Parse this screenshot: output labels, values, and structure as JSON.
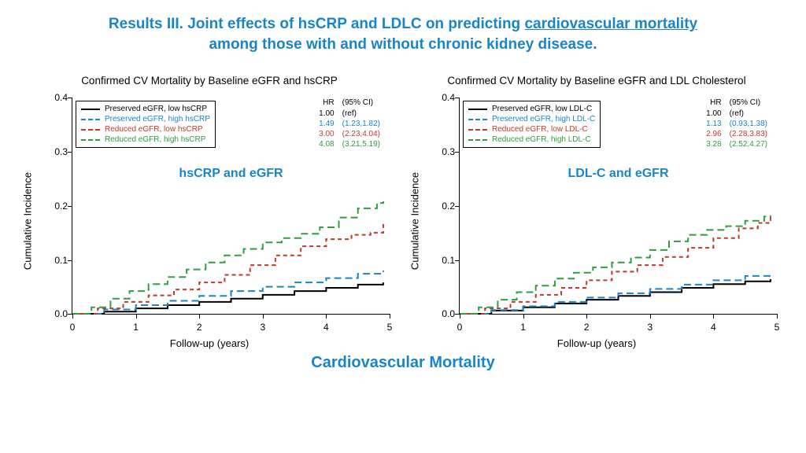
{
  "title": {
    "prefix": "Results III. Joint effects of hsCRP and LDLC on predicting ",
    "underlined": "cardiovascular mortality",
    "line2": "among those with and without chronic kidney disease."
  },
  "footer": "Cardiovascular Mortality",
  "axes": {
    "xlabel": "Follow-up (years)",
    "ylabel": "Cumulative Incidence",
    "xlim": [
      0,
      5
    ],
    "ylim": [
      0,
      0.4
    ],
    "xticks": [
      0,
      1,
      2,
      3,
      4,
      5
    ],
    "yticks": [
      0.0,
      0.1,
      0.2,
      0.3,
      0.4
    ],
    "tick_fontsize": 12,
    "label_fontsize": 13
  },
  "style": {
    "line_width": 2,
    "dash_short": "5,4",
    "dash_long": "9,5",
    "colors": {
      "black": "#000000",
      "blue": "#1985c8",
      "red": "#c0392b",
      "green": "#2e9e3f",
      "title": "#1985c8"
    },
    "background": "#ffffff"
  },
  "left_chart": {
    "title": "Confirmed CV Mortality by Baseline eGFR and hsCRP",
    "inset_label": "hsCRP and eGFR",
    "hr_header": {
      "col1": "HR",
      "col2": "(95% CI)"
    },
    "hr_rows": [
      {
        "hr": "1.00",
        "ci": "(ref)"
      },
      {
        "hr": "1.49",
        "ci": "(1.23,1.82)"
      },
      {
        "hr": "3.00",
        "ci": "(2.23,4.04)"
      },
      {
        "hr": "4.08",
        "ci": "(3.21,5.19)"
      }
    ],
    "series": [
      {
        "label": "Preserved eGFR, low hsCRP",
        "color": "#000000",
        "dash": "none",
        "points": [
          [
            0,
            0
          ],
          [
            0.5,
            0.004
          ],
          [
            1,
            0.01
          ],
          [
            1.5,
            0.016
          ],
          [
            2,
            0.022
          ],
          [
            2.5,
            0.028
          ],
          [
            3,
            0.035
          ],
          [
            3.5,
            0.042
          ],
          [
            4,
            0.048
          ],
          [
            4.5,
            0.054
          ],
          [
            4.9,
            0.058
          ]
        ]
      },
      {
        "label": "Preserved eGFR, high hsCRP",
        "color": "#1985c8",
        "dash": "9,5",
        "points": [
          [
            0,
            0
          ],
          [
            0.5,
            0.008
          ],
          [
            1,
            0.016
          ],
          [
            1.5,
            0.024
          ],
          [
            2,
            0.033
          ],
          [
            2.5,
            0.042
          ],
          [
            3,
            0.05
          ],
          [
            3.5,
            0.058
          ],
          [
            4,
            0.066
          ],
          [
            4.5,
            0.074
          ],
          [
            4.9,
            0.08
          ]
        ]
      },
      {
        "label": "Reduced eGFR, low hsCRP",
        "color": "#c0392b",
        "dash": "5,4",
        "points": [
          [
            0,
            0
          ],
          [
            0.4,
            0.01
          ],
          [
            0.8,
            0.022
          ],
          [
            1.2,
            0.034
          ],
          [
            1.6,
            0.045
          ],
          [
            2.0,
            0.058
          ],
          [
            2.4,
            0.072
          ],
          [
            2.8,
            0.09
          ],
          [
            3.2,
            0.108
          ],
          [
            3.6,
            0.125
          ],
          [
            4.0,
            0.138
          ],
          [
            4.4,
            0.146
          ],
          [
            4.7,
            0.15
          ],
          [
            4.9,
            0.168
          ]
        ]
      },
      {
        "label": "Reduced eGFR, high hsCRP",
        "color": "#2e9e3f",
        "dash": "9,5",
        "points": [
          [
            0,
            0
          ],
          [
            0.3,
            0.012
          ],
          [
            0.6,
            0.028
          ],
          [
            0.9,
            0.042
          ],
          [
            1.2,
            0.055
          ],
          [
            1.5,
            0.068
          ],
          [
            1.8,
            0.082
          ],
          [
            2.1,
            0.095
          ],
          [
            2.4,
            0.108
          ],
          [
            2.7,
            0.12
          ],
          [
            3.0,
            0.132
          ],
          [
            3.3,
            0.14
          ],
          [
            3.6,
            0.148
          ],
          [
            3.9,
            0.16
          ],
          [
            4.2,
            0.178
          ],
          [
            4.5,
            0.195
          ],
          [
            4.8,
            0.205
          ],
          [
            4.9,
            0.208
          ]
        ]
      }
    ]
  },
  "right_chart": {
    "title": "Confirmed CV Mortality by Baseline eGFR and LDL Cholesterol",
    "inset_label": "LDL-C and eGFR",
    "hr_header": {
      "col1": "HR",
      "col2": "(95% CI)"
    },
    "hr_rows": [
      {
        "hr": "1.00",
        "ci": "(ref)"
      },
      {
        "hr": "1.13",
        "ci": "(0.93,1.38)"
      },
      {
        "hr": "2.96",
        "ci": "(2.28,3.83)"
      },
      {
        "hr": "3.28",
        "ci": "(2.52,4.27)"
      }
    ],
    "series": [
      {
        "label": "Preserved eGFR, low LDL-C",
        "color": "#000000",
        "dash": "none",
        "points": [
          [
            0,
            0
          ],
          [
            0.5,
            0.006
          ],
          [
            1,
            0.012
          ],
          [
            1.5,
            0.019
          ],
          [
            2,
            0.026
          ],
          [
            2.5,
            0.033
          ],
          [
            3,
            0.04
          ],
          [
            3.5,
            0.048
          ],
          [
            4,
            0.055
          ],
          [
            4.5,
            0.06
          ],
          [
            4.9,
            0.064
          ]
        ]
      },
      {
        "label": "Preserved eGFR, high LDL-C",
        "color": "#1985c8",
        "dash": "9,5",
        "points": [
          [
            0,
            0
          ],
          [
            0.5,
            0.007
          ],
          [
            1,
            0.014
          ],
          [
            1.5,
            0.022
          ],
          [
            2,
            0.03
          ],
          [
            2.5,
            0.038
          ],
          [
            3,
            0.046
          ],
          [
            3.5,
            0.054
          ],
          [
            4,
            0.062
          ],
          [
            4.5,
            0.07
          ],
          [
            4.9,
            0.076
          ]
        ]
      },
      {
        "label": "Reduced eGFR, low LDL-C",
        "color": "#c0392b",
        "dash": "5,4",
        "points": [
          [
            0,
            0
          ],
          [
            0.4,
            0.01
          ],
          [
            0.8,
            0.022
          ],
          [
            1.2,
            0.035
          ],
          [
            1.6,
            0.048
          ],
          [
            2.0,
            0.062
          ],
          [
            2.4,
            0.078
          ],
          [
            2.8,
            0.09
          ],
          [
            3.2,
            0.105
          ],
          [
            3.6,
            0.122
          ],
          [
            4.0,
            0.14
          ],
          [
            4.4,
            0.158
          ],
          [
            4.7,
            0.168
          ],
          [
            4.9,
            0.182
          ]
        ]
      },
      {
        "label": "Reduced eGFR, high LDL-C",
        "color": "#2e9e3f",
        "dash": "9,5",
        "points": [
          [
            0,
            0
          ],
          [
            0.3,
            0.012
          ],
          [
            0.6,
            0.026
          ],
          [
            0.9,
            0.04
          ],
          [
            1.2,
            0.052
          ],
          [
            1.5,
            0.065
          ],
          [
            1.8,
            0.076
          ],
          [
            2.1,
            0.086
          ],
          [
            2.4,
            0.095
          ],
          [
            2.7,
            0.104
          ],
          [
            3.0,
            0.118
          ],
          [
            3.3,
            0.134
          ],
          [
            3.6,
            0.146
          ],
          [
            3.9,
            0.155
          ],
          [
            4.2,
            0.162
          ],
          [
            4.5,
            0.172
          ],
          [
            4.8,
            0.18
          ],
          [
            4.9,
            0.182
          ]
        ]
      }
    ]
  }
}
